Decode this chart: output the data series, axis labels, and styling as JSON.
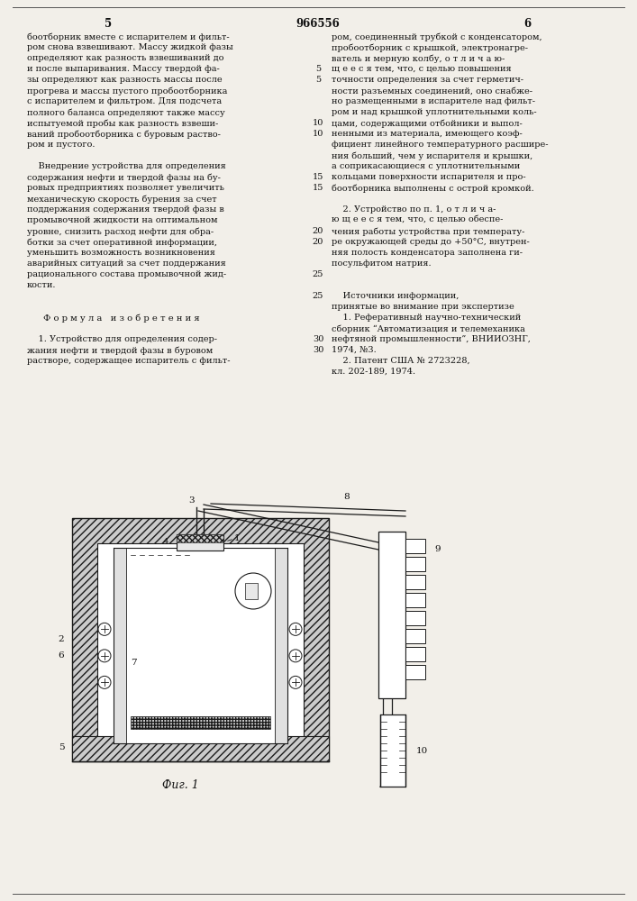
{
  "page_bg": "#f2efe9",
  "text_color": "#1a1a1a",
  "title_number": "966556",
  "page_num_left": "5",
  "page_num_right": "6",
  "col1_lines": [
    "боотборник вместе с испарителем и фильт-",
    "ром снова взвешивают. Массу жидкой фазы",
    "определяют как разность взвешиваний до",
    "и после выпаривания. Массу твердой фа-",
    "зы определяют как разность массы после",
    "прогрева и массы пустого пробоотборника",
    "с испарителем и фильтром. Для подсчета",
    "полного баланса определяют также массу",
    "испытуемой пробы как разность взвеши-",
    "ваний пробоотборника с буровым раство-",
    "ром и пустого.",
    "",
    "    Внедрение устройства для определения",
    "содержания нефти и твердой фазы на бу-",
    "ровых предприятиях позволяет увеличить",
    "механическую скорость бурения за счет",
    "поддержания содержания твердой фазы в",
    "промывочной жидкости на оптимальном",
    "уровне, снизить расход нефти для обра-",
    "ботки за счет оперативной информации,",
    "уменьшить возможность возникновения",
    "аварийных ситуаций за счет поддержания",
    "рационального состава промывочной жид-",
    "кости.",
    "",
    "",
    "Ф о р м у л а   и з о б р е т е н и я",
    "",
    "    1. Устройство для определения содер-",
    "жания нефти и твердой фазы в буровом",
    "растворе, содержащее испаритель с фильт-"
  ],
  "col2_lines": [
    "ром, соединенный трубкой с конденсатором,",
    "пробоотборник с крышкой, электронагре-",
    "ватель и мерную колбу, о т л и ч а ю-",
    "щ е е с я тем, что, с целью повышения",
    "точности определения за счет герметич-",
    "ности разъемных соединений, оно снабже-",
    "но размещенными в испарителе над фильт-",
    "ром и над крышкой уплотнительными коль-",
    "цами, содержащими отбойники и выпол-",
    "ненными из материала, имеющего коэф-",
    "фициент линейного температурного расшире-",
    "ния больший, чем у испарителя и крышки,",
    "а соприкасающиеся с уплотнительными",
    "кольцами поверхности испарителя и про-",
    "боотборника выполнены с острой кромкой.",
    "",
    "    2. Устройство по п. 1, о т л и ч а-",
    "ю щ е е с я тем, что, с целью обеспе-",
    "чения работы устройства при температу-",
    "ре окружающей среды до +50°С, внутрен-",
    "няя полость конденсатора заполнена ги-",
    "посульфитом натрия.",
    "",
    "",
    "    Источники информации,",
    "принятые во внимание при экспертизе",
    "    1. Реферативный научно-технический",
    "сборник “Автоматизация и телемеханика",
    "нефтяной промышленности”, ВНИИОЗНГ,",
    "1974, №3.",
    "    2. Патент США № 2723228,",
    "кл. 202-189, 1974."
  ],
  "margin_col1": {
    "3": "5",
    "8": "10",
    "13": "15",
    "18": "20",
    "22": "25",
    "28": "30"
  },
  "margin_col2": {
    "3": "5",
    "8": "10",
    "13": "15",
    "18": "20",
    "23": "25",
    "28": "30"
  }
}
